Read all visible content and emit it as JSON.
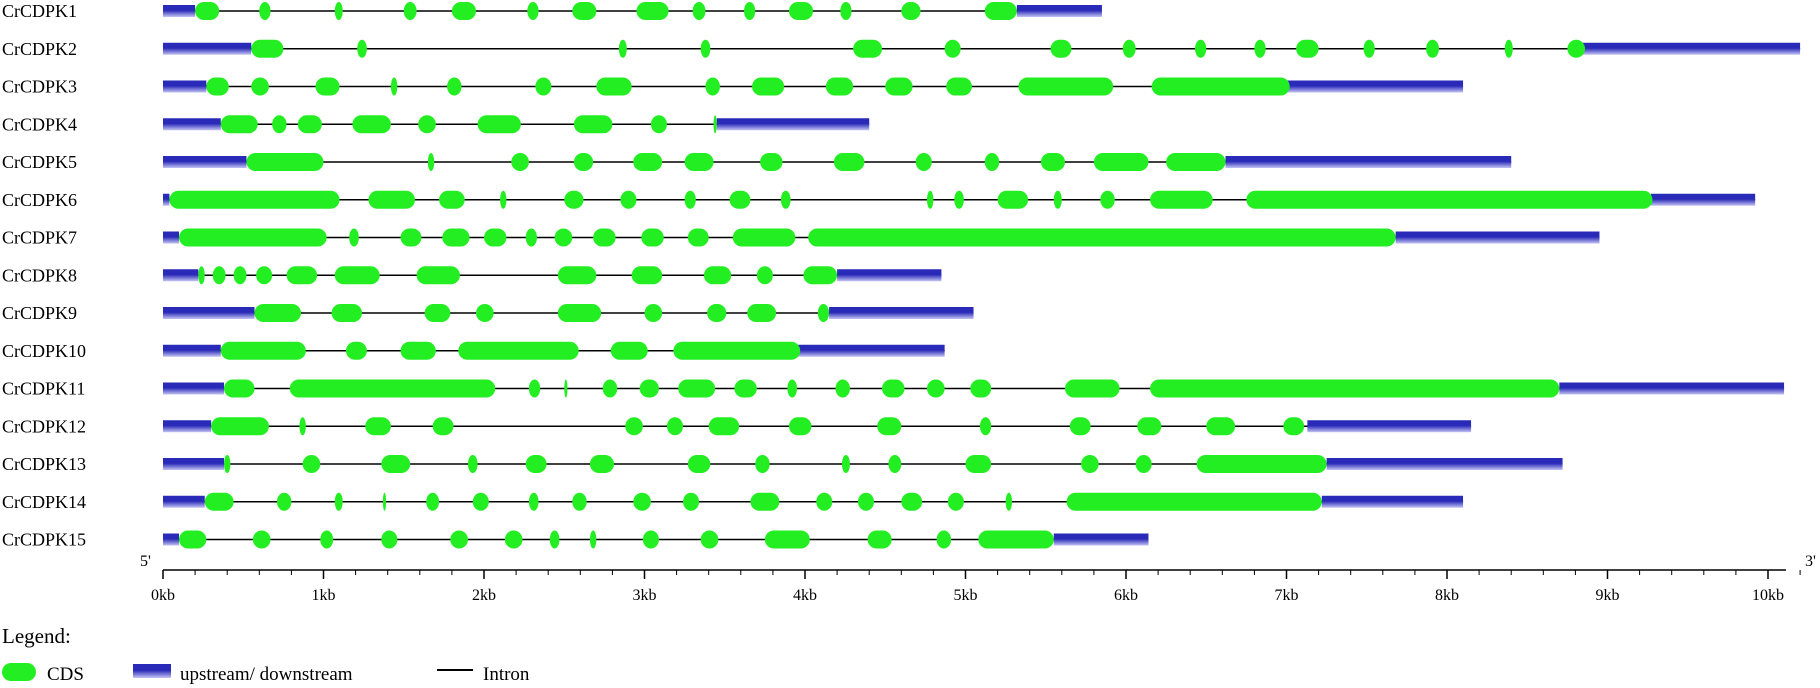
{
  "colors": {
    "cds": "#22ee22",
    "utr_dark": "#2a2ab8",
    "utr_light": "#c4c4f4",
    "intron": "#000000"
  },
  "axis": {
    "min_kb": 0,
    "max_kb": 10.2,
    "tick_labels": [
      "0kb",
      "1kb",
      "2kb",
      "3kb",
      "4kb",
      "5kb",
      "6kb",
      "7kb",
      "8kb",
      "9kb",
      "10kb"
    ],
    "left_end_label": "5'",
    "right_end_label": "3'"
  },
  "legend": {
    "title": "Legend:",
    "cds_label": "CDS",
    "utr_label": "upstream/ downstream",
    "intron_label": "Intron"
  },
  "genes": [
    {
      "name": "CrCDPK1",
      "end": 5.85,
      "utr5": 0.2,
      "utr3": 5.32,
      "cds": [
        [
          0.2,
          0.35
        ],
        [
          0.6,
          0.67
        ],
        [
          1.07,
          1.12
        ],
        [
          1.5,
          1.58
        ],
        [
          1.8,
          1.95
        ],
        [
          2.27,
          2.34
        ],
        [
          2.55,
          2.7
        ],
        [
          2.95,
          3.15
        ],
        [
          3.3,
          3.38
        ],
        [
          3.62,
          3.69
        ],
        [
          3.9,
          4.05
        ],
        [
          4.22,
          4.29
        ],
        [
          4.6,
          4.72
        ],
        [
          5.12,
          5.32
        ]
      ]
    },
    {
      "name": "CrCDPK2",
      "end": 10.2,
      "utr5": 0.55,
      "utr3": 8.82,
      "cds": [
        [
          0.55,
          0.75
        ],
        [
          1.21,
          1.27
        ],
        [
          2.84,
          2.89
        ],
        [
          3.35,
          3.41
        ],
        [
          4.3,
          4.48
        ],
        [
          4.87,
          4.97
        ],
        [
          5.53,
          5.66
        ],
        [
          5.98,
          6.06
        ],
        [
          6.43,
          6.5
        ],
        [
          6.8,
          6.87
        ],
        [
          7.06,
          7.2
        ],
        [
          7.48,
          7.55
        ],
        [
          7.87,
          7.95
        ],
        [
          8.36,
          8.41
        ],
        [
          8.75,
          8.86
        ]
      ]
    },
    {
      "name": "CrCDPK3",
      "end": 8.1,
      "utr5": 0.27,
      "utr3": 7.0,
      "cds": [
        [
          0.27,
          0.41
        ],
        [
          0.55,
          0.66
        ],
        [
          0.95,
          1.1
        ],
        [
          1.42,
          1.46
        ],
        [
          1.77,
          1.86
        ],
        [
          2.32,
          2.42
        ],
        [
          2.7,
          2.92
        ],
        [
          3.38,
          3.47
        ],
        [
          3.67,
          3.87
        ],
        [
          4.13,
          4.3
        ],
        [
          4.5,
          4.67
        ],
        [
          4.88,
          5.04
        ],
        [
          5.33,
          5.92
        ],
        [
          6.16,
          7.02
        ]
      ]
    },
    {
      "name": "CrCDPK4",
      "end": 4.4,
      "utr5": 0.36,
      "utr3": 3.45,
      "cds": [
        [
          0.36,
          0.59
        ],
        [
          0.68,
          0.77
        ],
        [
          0.84,
          0.99
        ],
        [
          1.18,
          1.42
        ],
        [
          1.59,
          1.7
        ],
        [
          1.96,
          2.23
        ],
        [
          2.56,
          2.8
        ],
        [
          3.04,
          3.14
        ],
        [
          3.43,
          3.45
        ]
      ]
    },
    {
      "name": "CrCDPK5",
      "end": 8.4,
      "utr5": 0.52,
      "utr3": 6.62,
      "cds": [
        [
          0.52,
          1.0
        ],
        [
          1.65,
          1.69
        ],
        [
          2.17,
          2.28
        ],
        [
          2.56,
          2.68
        ],
        [
          2.93,
          3.11
        ],
        [
          3.25,
          3.43
        ],
        [
          3.72,
          3.86
        ],
        [
          4.18,
          4.37
        ],
        [
          4.69,
          4.79
        ],
        [
          5.12,
          5.21
        ],
        [
          5.47,
          5.62
        ],
        [
          5.8,
          6.14
        ],
        [
          6.25,
          6.62
        ]
      ]
    },
    {
      "name": "CrCDPK6",
      "end": 9.92,
      "utr5": 0.04,
      "utr3": 9.27,
      "cds": [
        [
          0.04,
          1.1
        ],
        [
          1.28,
          1.57
        ],
        [
          1.72,
          1.88
        ],
        [
          2.1,
          2.14
        ],
        [
          2.5,
          2.62
        ],
        [
          2.85,
          2.95
        ],
        [
          3.25,
          3.32
        ],
        [
          3.53,
          3.66
        ],
        [
          3.85,
          3.91
        ],
        [
          4.76,
          4.8
        ],
        [
          4.93,
          4.99
        ],
        [
          5.2,
          5.39
        ],
        [
          5.55,
          5.6
        ],
        [
          5.84,
          5.93
        ],
        [
          6.15,
          6.54
        ],
        [
          6.75,
          9.28
        ]
      ]
    },
    {
      "name": "CrCDPK7",
      "end": 8.95,
      "utr5": 0.1,
      "utr3": 7.68,
      "cds": [
        [
          0.1,
          1.02
        ],
        [
          1.16,
          1.22
        ],
        [
          1.48,
          1.61
        ],
        [
          1.74,
          1.91
        ],
        [
          2.0,
          2.14
        ],
        [
          2.26,
          2.33
        ],
        [
          2.44,
          2.55
        ],
        [
          2.68,
          2.82
        ],
        [
          2.98,
          3.12
        ],
        [
          3.27,
          3.4
        ],
        [
          3.55,
          3.94
        ],
        [
          4.02,
          7.68
        ]
      ]
    },
    {
      "name": "CrCDPK8",
      "end": 4.85,
      "utr5": 0.22,
      "utr3": 4.2,
      "cds": [
        [
          0.22,
          0.26
        ],
        [
          0.31,
          0.39
        ],
        [
          0.44,
          0.52
        ],
        [
          0.58,
          0.68
        ],
        [
          0.77,
          0.96
        ],
        [
          1.07,
          1.35
        ],
        [
          1.58,
          1.85
        ],
        [
          2.46,
          2.7
        ],
        [
          2.92,
          3.11
        ],
        [
          3.37,
          3.54
        ],
        [
          3.7,
          3.8
        ],
        [
          3.99,
          4.2
        ]
      ]
    },
    {
      "name": "CrCDPK9",
      "end": 5.05,
      "utr5": 0.57,
      "utr3": 4.15,
      "cds": [
        [
          0.57,
          0.86
        ],
        [
          1.05,
          1.24
        ],
        [
          1.63,
          1.79
        ],
        [
          1.95,
          2.06
        ],
        [
          2.46,
          2.73
        ],
        [
          3.0,
          3.11
        ],
        [
          3.39,
          3.51
        ],
        [
          3.64,
          3.82
        ],
        [
          4.08,
          4.15
        ]
      ]
    },
    {
      "name": "CrCDPK10",
      "end": 4.87,
      "utr5": 0.36,
      "utr3": 3.95,
      "cds": [
        [
          0.36,
          0.89
        ],
        [
          1.14,
          1.27
        ],
        [
          1.48,
          1.7
        ],
        [
          1.84,
          2.59
        ],
        [
          2.79,
          3.02
        ],
        [
          3.18,
          3.97
        ]
      ]
    },
    {
      "name": "CrCDPK11",
      "end": 10.1,
      "utr5": 0.38,
      "utr3": 8.7,
      "cds": [
        [
          0.38,
          0.57
        ],
        [
          0.79,
          2.07
        ],
        [
          2.28,
          2.35
        ],
        [
          2.5,
          2.52
        ],
        [
          2.74,
          2.83
        ],
        [
          2.97,
          3.09
        ],
        [
          3.21,
          3.44
        ],
        [
          3.56,
          3.7
        ],
        [
          3.89,
          3.95
        ],
        [
          4.19,
          4.28
        ],
        [
          4.48,
          4.62
        ],
        [
          4.76,
          4.87
        ],
        [
          5.03,
          5.16
        ],
        [
          5.62,
          5.96
        ],
        [
          6.15,
          8.7
        ]
      ]
    },
    {
      "name": "CrCDPK12",
      "end": 8.15,
      "utr5": 0.3,
      "utr3": 7.13,
      "cds": [
        [
          0.3,
          0.66
        ],
        [
          0.85,
          0.89
        ],
        [
          1.26,
          1.42
        ],
        [
          1.68,
          1.81
        ],
        [
          2.88,
          2.99
        ],
        [
          3.14,
          3.24
        ],
        [
          3.4,
          3.59
        ],
        [
          3.9,
          4.04
        ],
        [
          4.45,
          4.6
        ],
        [
          5.09,
          5.16
        ],
        [
          5.65,
          5.78
        ],
        [
          6.07,
          6.22
        ],
        [
          6.5,
          6.68
        ],
        [
          6.98,
          7.11
        ]
      ]
    },
    {
      "name": "CrCDPK13",
      "end": 8.72,
      "utr5": 0.38,
      "utr3": 7.25,
      "cds": [
        [
          0.38,
          0.42
        ],
        [
          0.87,
          0.98
        ],
        [
          1.36,
          1.54
        ],
        [
          1.9,
          1.96
        ],
        [
          2.26,
          2.39
        ],
        [
          2.66,
          2.81
        ],
        [
          3.27,
          3.41
        ],
        [
          3.69,
          3.78
        ],
        [
          4.23,
          4.28
        ],
        [
          4.52,
          4.6
        ],
        [
          5.0,
          5.16
        ],
        [
          5.72,
          5.83
        ],
        [
          6.06,
          6.16
        ],
        [
          6.44,
          7.25
        ]
      ]
    },
    {
      "name": "CrCDPK14",
      "end": 8.1,
      "utr5": 0.26,
      "utr3": 7.22,
      "cds": [
        [
          0.26,
          0.44
        ],
        [
          0.71,
          0.8
        ],
        [
          1.07,
          1.12
        ],
        [
          1.37,
          1.39
        ],
        [
          1.64,
          1.72
        ],
        [
          1.93,
          2.03
        ],
        [
          2.28,
          2.34
        ],
        [
          2.55,
          2.64
        ],
        [
          2.93,
          3.04
        ],
        [
          3.24,
          3.34
        ],
        [
          3.66,
          3.84
        ],
        [
          4.07,
          4.17
        ],
        [
          4.33,
          4.43
        ],
        [
          4.6,
          4.73
        ],
        [
          4.89,
          4.99
        ],
        [
          5.25,
          5.29
        ],
        [
          5.63,
          7.22
        ]
      ]
    },
    {
      "name": "CrCDPK15",
      "end": 6.14,
      "utr5": 0.1,
      "utr3": 5.55,
      "cds": [
        [
          0.1,
          0.27
        ],
        [
          0.56,
          0.67
        ],
        [
          0.98,
          1.06
        ],
        [
          1.36,
          1.46
        ],
        [
          1.79,
          1.9
        ],
        [
          2.13,
          2.24
        ],
        [
          2.41,
          2.47
        ],
        [
          2.66,
          2.7
        ],
        [
          2.99,
          3.09
        ],
        [
          3.35,
          3.46
        ],
        [
          3.75,
          4.03
        ],
        [
          4.39,
          4.54
        ],
        [
          4.82,
          4.91
        ],
        [
          5.08,
          5.55
        ]
      ]
    }
  ]
}
